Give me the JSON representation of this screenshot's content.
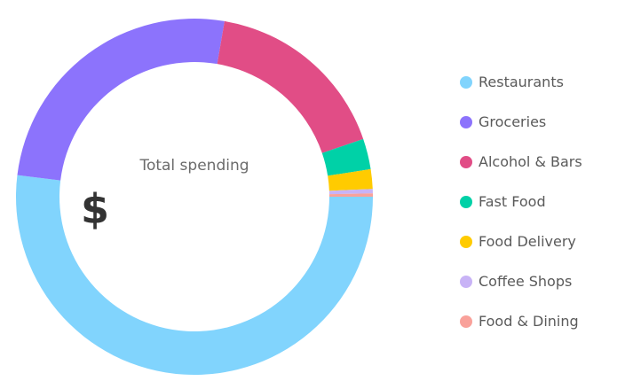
{
  "chart_data": {
    "type": "pie",
    "variant": "donut",
    "center_label": "Total spending",
    "center_value": "$",
    "categories": [
      "Restaurants",
      "Groceries",
      "Alcohol & Bars",
      "Fast Food",
      "Food Delivery",
      "Coffee Shops",
      "Food & Dining"
    ],
    "values": [
      52.4,
      26.0,
      17.2,
      2.8,
      1.8,
      0.4,
      0.3
    ],
    "colors": [
      "#81d4fd",
      "#8c73fc",
      "#e14d86",
      "#00d1a7",
      "#ffcb00",
      "#c8b3f6",
      "#f9a19a"
    ],
    "legend_position": "right"
  }
}
